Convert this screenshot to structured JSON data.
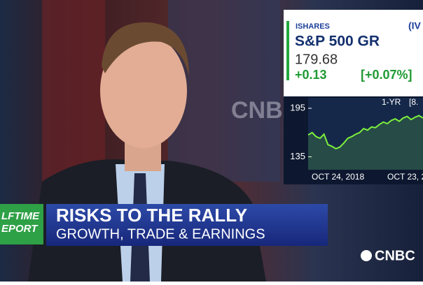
{
  "backdrop": {
    "wall_logo": "CNB"
  },
  "ticker": {
    "issuer": "ISHARES",
    "name": "S&P 500 GR",
    "symbol": "(IV",
    "price": "179.68",
    "change": "+0.13",
    "change_pct": "[+0.07%]",
    "chart_data": {
      "type": "line",
      "period": "1-YR",
      "period_change": "[8.",
      "x_labels": [
        "OCT 24, 2018",
        "OCT 23, 20"
      ],
      "series": [
        {
          "color": "#7cf03c",
          "values": [
            162,
            165,
            160,
            158,
            163,
            150,
            148,
            145,
            147,
            152,
            158,
            160,
            163,
            165,
            170,
            168,
            172,
            171,
            175,
            178,
            176,
            180,
            182,
            179,
            183,
            185,
            181,
            184,
            186,
            183
          ]
        }
      ],
      "ylim": [
        119,
        208
      ],
      "yticks": [
        135,
        195
      ]
    }
  },
  "lower_third": {
    "show_line1": "LFTIME",
    "show_line2": "EPORT",
    "headline": "RISKS TO THE RALLY",
    "subhead": "GROWTH, TRADE & EARNINGS"
  },
  "network_logo": "CNBC"
}
